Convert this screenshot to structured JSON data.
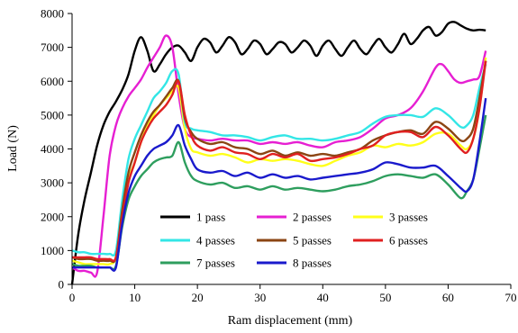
{
  "chart_data": {
    "type": "line",
    "title": "",
    "xlabel": "Ram displacement (mm)",
    "ylabel": "Load (N)",
    "xlim": [
      0,
      70
    ],
    "ylim": [
      0,
      8000
    ],
    "x_ticks": [
      "0",
      "10",
      "20",
      "30",
      "40",
      "50",
      "60",
      "70"
    ],
    "y_ticks": [
      "0",
      "1000",
      "2000",
      "3000",
      "4000",
      "5000",
      "6000",
      "7000",
      "8000"
    ],
    "grid": false,
    "legend_position": "lower-middle, inside plot, 3 columns",
    "series": [
      {
        "name": "1 pass",
        "color": "#000000",
        "x": [
          0,
          1,
          2,
          3,
          4,
          5,
          6,
          7,
          8,
          9,
          10,
          11,
          12,
          13,
          14,
          15,
          16,
          17,
          18,
          19,
          20,
          21,
          22,
          23,
          24,
          25,
          26,
          27,
          28,
          29,
          30,
          31,
          32,
          33,
          34,
          35,
          36,
          37,
          38,
          39,
          40,
          41,
          42,
          43,
          44,
          45,
          46,
          47,
          48,
          49,
          50,
          51,
          52,
          53,
          54,
          55,
          56,
          57,
          58,
          59,
          60,
          61,
          62,
          63,
          64,
          65,
          66
        ],
        "y": [
          0,
          1500,
          2500,
          3300,
          4100,
          4700,
          5100,
          5400,
          5750,
          6200,
          6900,
          7300,
          6900,
          6300,
          6500,
          6800,
          7000,
          7050,
          6850,
          6600,
          7000,
          7250,
          7150,
          6850,
          7050,
          7300,
          7150,
          6800,
          6950,
          7200,
          7100,
          6800,
          6950,
          7150,
          7100,
          6850,
          7000,
          7200,
          7050,
          6750,
          7050,
          7200,
          6950,
          6750,
          7000,
          7200,
          6950,
          6800,
          7050,
          7250,
          7000,
          6850,
          7100,
          7400,
          7100,
          7250,
          7500,
          7600,
          7350,
          7450,
          7700,
          7750,
          7650,
          7550,
          7500,
          7520,
          7500
        ]
      },
      {
        "name": "2 passes",
        "color": "#e61fd2",
        "x": [
          0,
          1,
          2,
          3,
          4,
          5,
          6,
          7,
          8,
          9,
          10,
          11,
          12,
          13,
          14,
          15,
          16,
          17,
          18,
          19,
          20,
          22,
          24,
          26,
          28,
          30,
          32,
          34,
          36,
          38,
          40,
          42,
          44,
          46,
          48,
          50,
          52,
          54,
          56,
          58,
          59,
          60,
          61,
          62,
          63,
          64,
          65,
          66
        ],
        "y": [
          500,
          400,
          400,
          350,
          350,
          2000,
          3800,
          4700,
          5200,
          5550,
          5800,
          6050,
          6400,
          6700,
          7000,
          7350,
          7000,
          5600,
          4600,
          4350,
          4300,
          4250,
          4300,
          4250,
          4250,
          4150,
          4200,
          4150,
          4200,
          4100,
          4050,
          4200,
          4250,
          4350,
          4600,
          4900,
          5000,
          5200,
          5700,
          6400,
          6500,
          6300,
          6050,
          5950,
          6000,
          6050,
          6150,
          6900
        ]
      },
      {
        "name": "3 passes",
        "color": "#ffff1a",
        "x": [
          0,
          1,
          2,
          3,
          4,
          5,
          6,
          7,
          8,
          9,
          10,
          11,
          12,
          13,
          14,
          15,
          16,
          17,
          18,
          19,
          20,
          22,
          24,
          26,
          28,
          30,
          32,
          34,
          36,
          38,
          40,
          42,
          44,
          46,
          48,
          50,
          52,
          54,
          56,
          58,
          60,
          62,
          63,
          64,
          65,
          66
        ],
        "y": [
          700,
          650,
          600,
          600,
          600,
          600,
          600,
          800,
          2000,
          3100,
          3600,
          4200,
          4700,
          5000,
          5300,
          5500,
          5700,
          5800,
          4600,
          4000,
          3900,
          3800,
          3850,
          3750,
          3600,
          3700,
          3650,
          3700,
          3650,
          3550,
          3500,
          3650,
          3800,
          3900,
          4100,
          4050,
          4150,
          4100,
          4200,
          4450,
          4450,
          4100,
          4000,
          4300,
          5200,
          6700
        ]
      },
      {
        "name": "4 passes",
        "color": "#33e6e6",
        "x": [
          0,
          1,
          2,
          3,
          4,
          5,
          6,
          7,
          8,
          9,
          10,
          11,
          12,
          13,
          14,
          15,
          16,
          17,
          18,
          19,
          20,
          22,
          24,
          26,
          28,
          30,
          32,
          34,
          36,
          38,
          40,
          42,
          44,
          46,
          48,
          50,
          52,
          54,
          56,
          58,
          60,
          62,
          63,
          64,
          65,
          66
        ],
        "y": [
          1000,
          950,
          950,
          900,
          900,
          900,
          900,
          1000,
          2500,
          3700,
          4300,
          4700,
          5100,
          5500,
          5700,
          5950,
          6300,
          6200,
          4800,
          4600,
          4550,
          4500,
          4400,
          4400,
          4350,
          4250,
          4350,
          4400,
          4300,
          4300,
          4250,
          4300,
          4400,
          4500,
          4750,
          4950,
          5000,
          5000,
          4950,
          5200,
          5000,
          4650,
          4700,
          5000,
          5800,
          6500
        ]
      },
      {
        "name": "5 passes",
        "color": "#8b4513",
        "x": [
          0,
          1,
          2,
          3,
          4,
          5,
          6,
          7,
          8,
          9,
          10,
          11,
          12,
          13,
          14,
          15,
          16,
          17,
          18,
          19,
          20,
          22,
          24,
          26,
          28,
          30,
          32,
          34,
          36,
          38,
          40,
          42,
          44,
          46,
          48,
          50,
          52,
          54,
          56,
          58,
          60,
          62,
          63,
          64,
          65,
          66
        ],
        "y": [
          800,
          750,
          750,
          750,
          700,
          700,
          700,
          800,
          2200,
          3300,
          3900,
          4400,
          4800,
          5100,
          5300,
          5550,
          5800,
          6000,
          4900,
          4500,
          4300,
          4150,
          4200,
          4050,
          4000,
          3850,
          3950,
          3800,
          3900,
          3800,
          3850,
          3800,
          3900,
          4000,
          4250,
          4400,
          4500,
          4550,
          4450,
          4800,
          4600,
          4250,
          4300,
          4600,
          5500,
          6600
        ]
      },
      {
        "name": "6 passes",
        "color": "#e02020",
        "x": [
          0,
          1,
          2,
          3,
          4,
          5,
          6,
          7,
          8,
          9,
          10,
          11,
          12,
          13,
          14,
          15,
          16,
          17,
          18,
          19,
          20,
          22,
          24,
          26,
          28,
          30,
          32,
          34,
          36,
          38,
          40,
          42,
          44,
          46,
          48,
          50,
          52,
          54,
          56,
          58,
          60,
          62,
          63,
          64,
          65,
          66
        ],
        "y": [
          800,
          800,
          800,
          800,
          750,
          750,
          750,
          800,
          2000,
          3000,
          3600,
          4200,
          4600,
          4900,
          5100,
          5300,
          5600,
          6000,
          5000,
          4400,
          4100,
          3950,
          4050,
          3900,
          3850,
          3700,
          3850,
          3750,
          3850,
          3650,
          3700,
          3750,
          3850,
          4000,
          4100,
          4400,
          4500,
          4500,
          4350,
          4650,
          4400,
          4000,
          3900,
          4300,
          5200,
          6600
        ]
      },
      {
        "name": "7 passes",
        "color": "#2e9e5e",
        "x": [
          0,
          1,
          2,
          3,
          4,
          5,
          6,
          7,
          8,
          9,
          10,
          11,
          12,
          13,
          14,
          15,
          16,
          17,
          18,
          19,
          20,
          22,
          24,
          26,
          28,
          30,
          32,
          34,
          36,
          38,
          40,
          42,
          44,
          46,
          48,
          50,
          52,
          54,
          56,
          58,
          60,
          62,
          63,
          64,
          65,
          66
        ],
        "y": [
          600,
          550,
          550,
          550,
          500,
          500,
          500,
          550,
          1700,
          2500,
          2900,
          3200,
          3400,
          3600,
          3700,
          3750,
          3800,
          4200,
          3600,
          3200,
          3050,
          2950,
          3000,
          2850,
          2900,
          2800,
          2900,
          2800,
          2850,
          2800,
          2750,
          2800,
          2900,
          2950,
          3050,
          3200,
          3250,
          3200,
          3150,
          3250,
          2950,
          2550,
          2750,
          3100,
          4000,
          5000
        ]
      },
      {
        "name": "8 passes",
        "color": "#1a1acc",
        "x": [
          0,
          1,
          2,
          3,
          4,
          5,
          6,
          7,
          8,
          9,
          10,
          11,
          12,
          13,
          14,
          15,
          16,
          17,
          18,
          19,
          20,
          22,
          24,
          26,
          28,
          30,
          32,
          34,
          36,
          38,
          40,
          42,
          44,
          46,
          48,
          50,
          52,
          54,
          56,
          58,
          60,
          62,
          63,
          64,
          65,
          66
        ],
        "y": [
          500,
          500,
          500,
          500,
          500,
          500,
          500,
          500,
          1800,
          2700,
          3200,
          3500,
          3800,
          4000,
          4100,
          4200,
          4400,
          4700,
          4100,
          3700,
          3400,
          3300,
          3350,
          3200,
          3300,
          3150,
          3250,
          3150,
          3200,
          3100,
          3150,
          3200,
          3250,
          3300,
          3400,
          3600,
          3550,
          3450,
          3450,
          3500,
          3200,
          2850,
          2750,
          3100,
          4200,
          5500
        ]
      }
    ]
  }
}
